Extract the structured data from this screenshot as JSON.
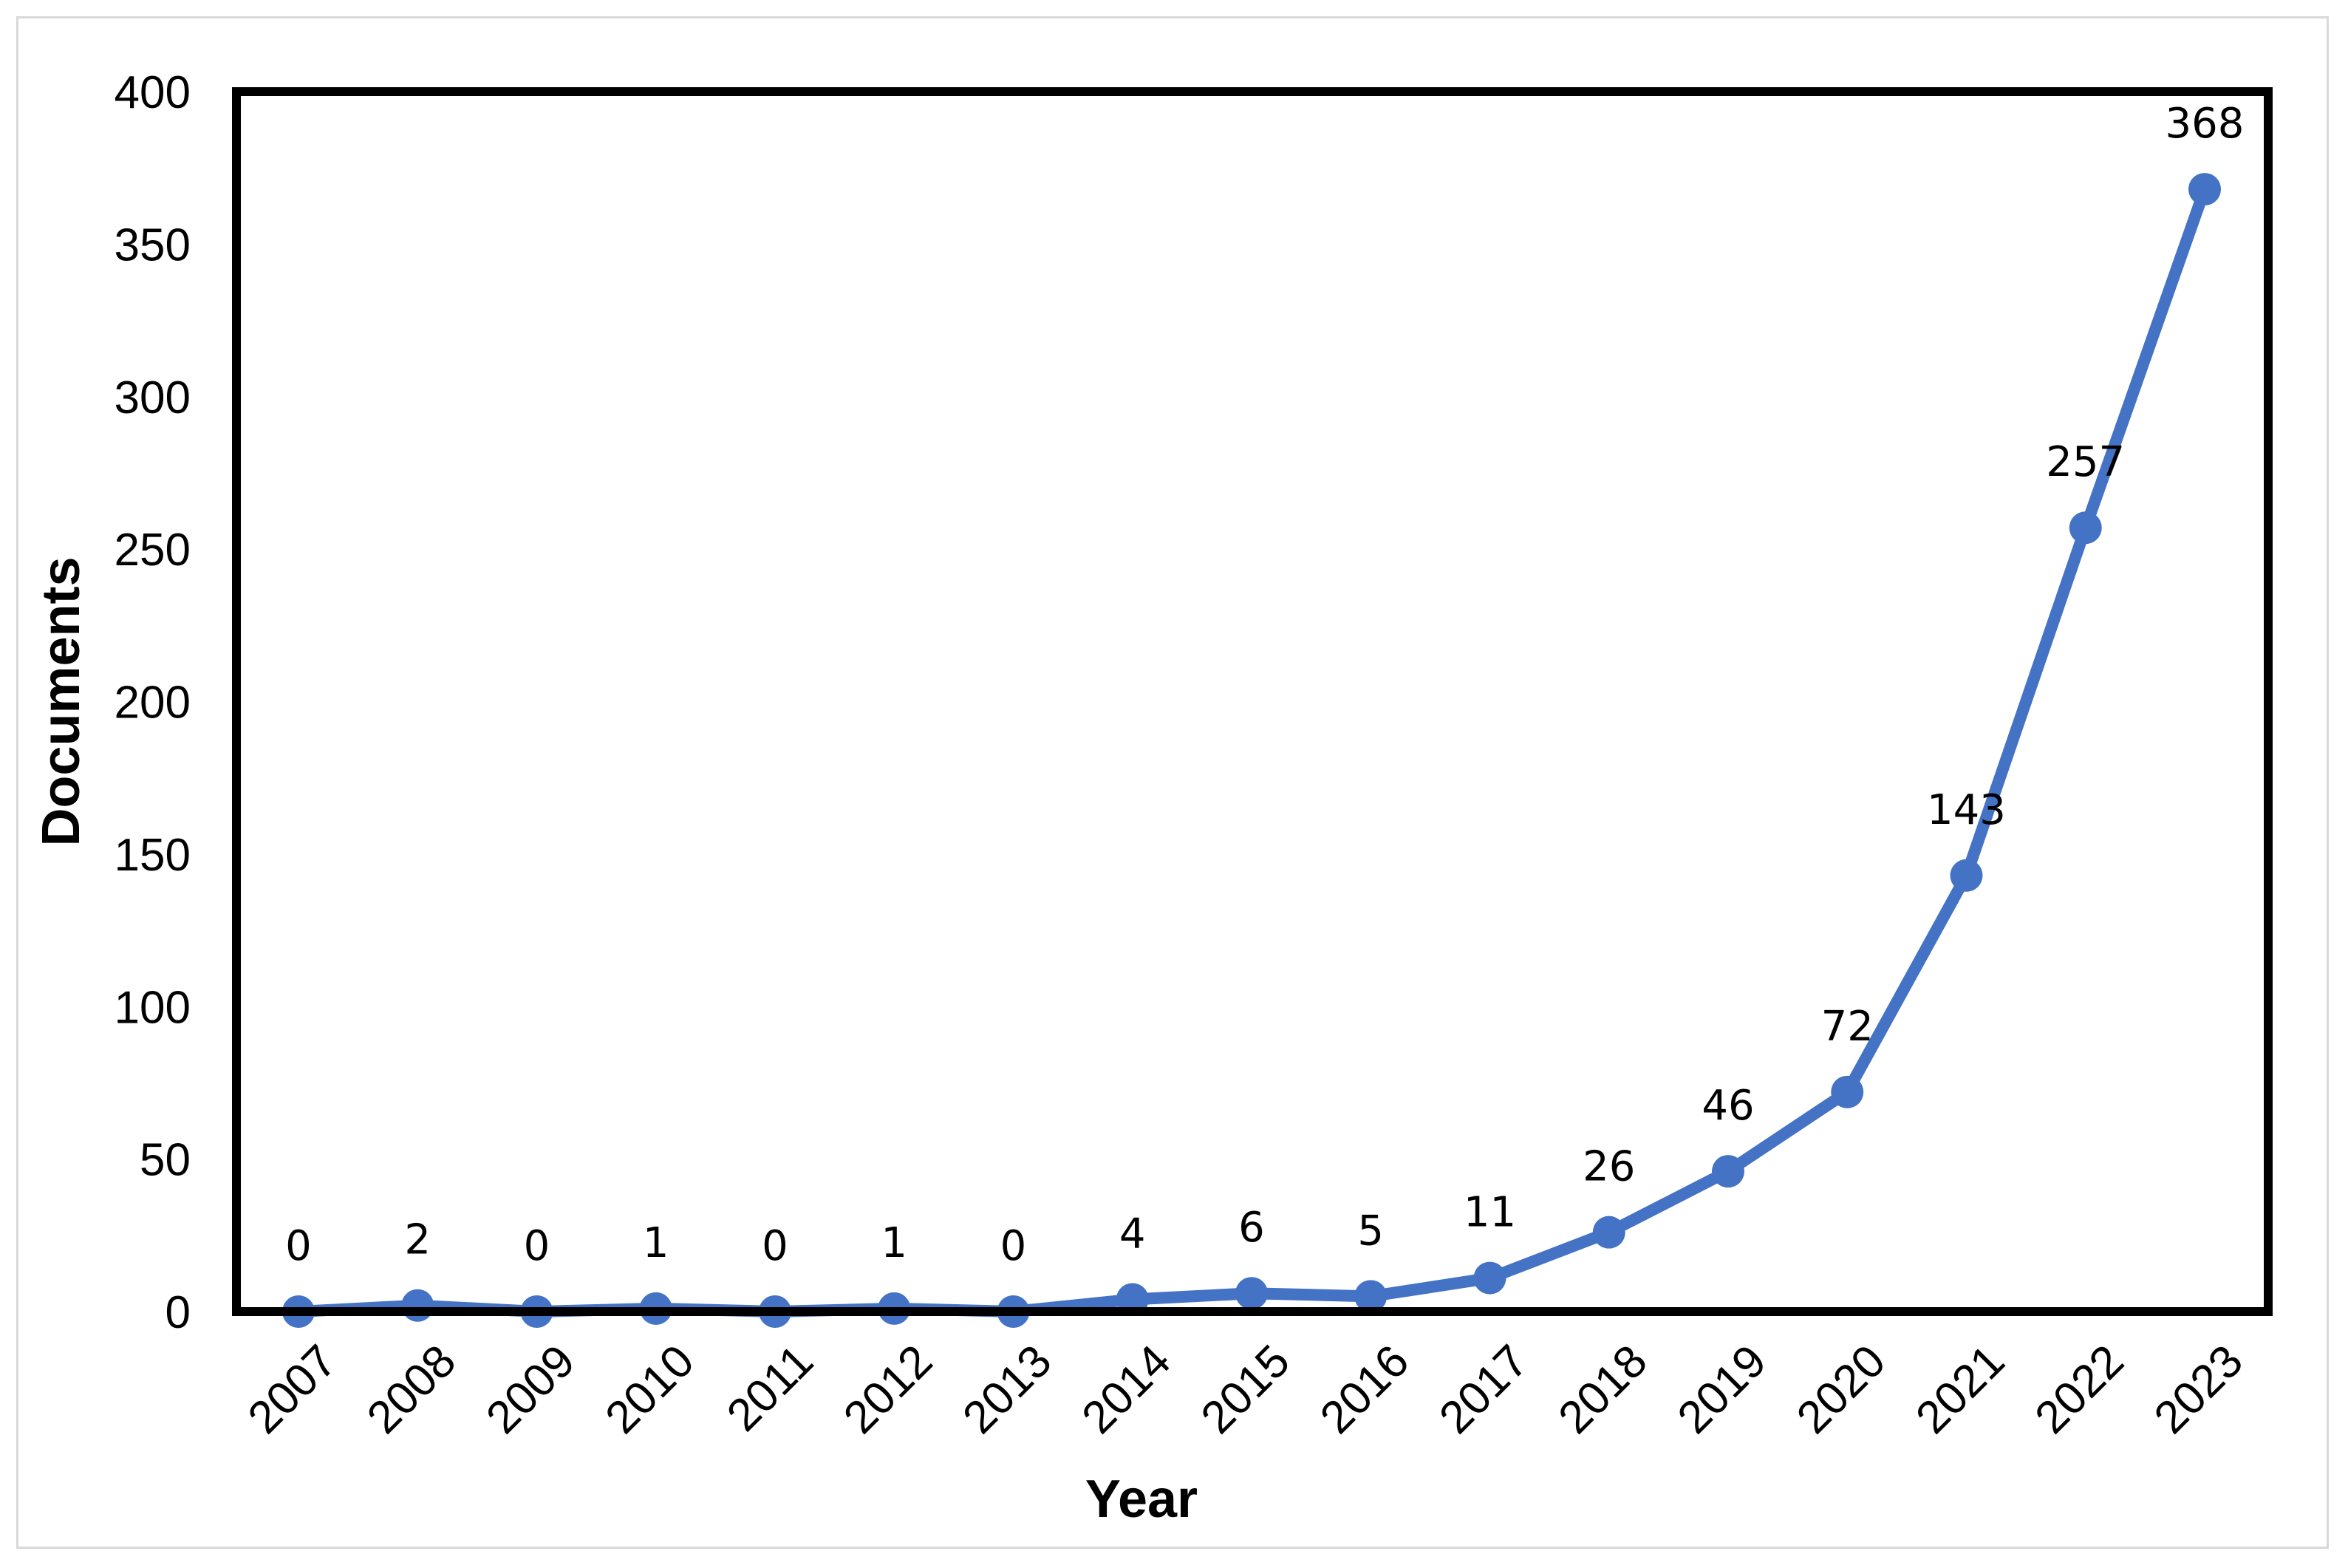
{
  "chart_data": {
    "type": "line",
    "title": "",
    "xlabel": "Year",
    "ylabel": "Documents",
    "ylim": [
      0,
      400
    ],
    "yticks": [
      0,
      50,
      100,
      150,
      200,
      250,
      300,
      350,
      400
    ],
    "categories": [
      "2007",
      "2008",
      "2009",
      "2010",
      "2011",
      "2012",
      "2013",
      "2014",
      "2015",
      "2016",
      "2017",
      "2018",
      "2019",
      "2020",
      "2021",
      "2022",
      "2023"
    ],
    "series": [
      {
        "values": [
          0,
          2,
          0,
          1,
          0,
          1,
          0,
          4,
          6,
          5,
          11,
          26,
          46,
          72,
          143,
          257,
          368
        ]
      }
    ],
    "data_labels": [
      "0",
      "2",
      "0",
      "1",
      "0",
      "1",
      "0",
      "4",
      "6",
      "5",
      "11",
      "26",
      "46",
      "72",
      "143",
      "257",
      "368"
    ],
    "grid": false,
    "legend": "none",
    "line_color": "#4472c4",
    "frame_color": "#000000"
  }
}
